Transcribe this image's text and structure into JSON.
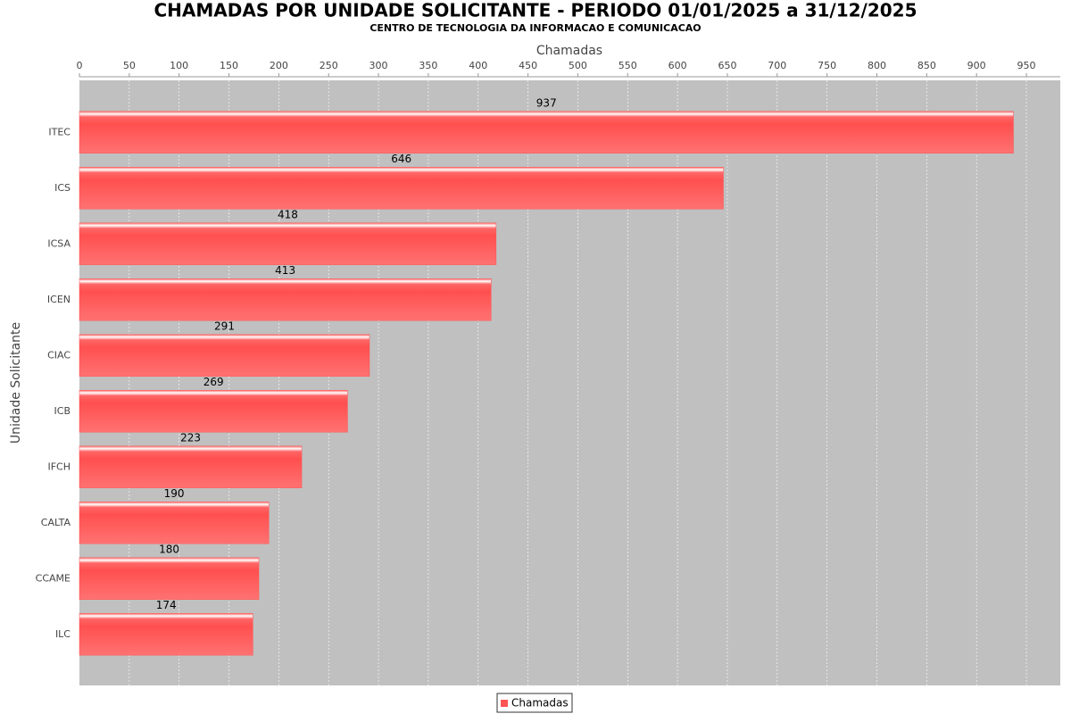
{
  "chart_data": {
    "type": "hbar",
    "title": "CHAMADAS POR UNIDADE SOLICITANTE - PERIODO 01/01/2025 a 31/12/2025",
    "subtitle": "CENTRO DE TECNOLOGIA DA INFORMACAO E COMUNICACAO",
    "x_label": "Chamadas",
    "y_label": "Unidade Solicitante",
    "categories": [
      "ITEC",
      "ICS",
      "ICSA",
      "ICEN",
      "CIAC",
      "ICB",
      "IFCH",
      "CALTA",
      "CCAME",
      "ILC"
    ],
    "series": [
      {
        "name": "Chamadas",
        "color": "#ff5555",
        "values": [
          937,
          646,
          418,
          413,
          291,
          269,
          223,
          190,
          180,
          174
        ]
      }
    ],
    "xlim": [
      0,
      984
    ],
    "xticks": [
      0,
      50,
      100,
      150,
      200,
      250,
      300,
      350,
      400,
      450,
      500,
      550,
      600,
      650,
      700,
      750,
      800,
      850,
      900,
      950
    ],
    "grid": true
  }
}
